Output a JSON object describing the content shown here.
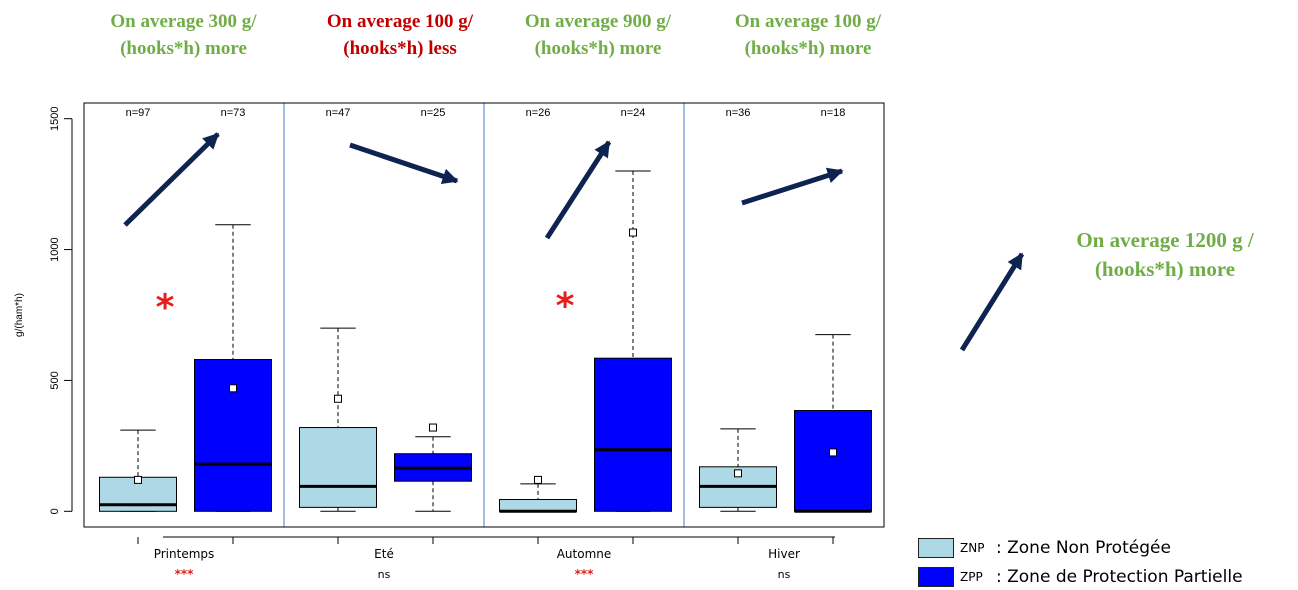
{
  "annotations": [
    {
      "text": "On average 300 g/ (hooks*h) more",
      "color": "#70ad47"
    },
    {
      "text": "On average 100 g/ (hooks*h) less",
      "color": "#c00000"
    },
    {
      "text": "On average 900 g/ (hooks*h) more",
      "color": "#70ad47"
    },
    {
      "text": "On average 100 g/ (hooks*h) more",
      "color": "#70ad47"
    },
    {
      "text": "On average 1200 g / (hooks*h) more",
      "color": "#70ad47"
    }
  ],
  "legend": [
    {
      "code": "ZNP",
      "label": ": Zone Non Protégée",
      "color": "#add8e6"
    },
    {
      "code": "ZPP",
      "label": ": Zone de Protection Partielle",
      "color": "#0000ff"
    }
  ],
  "arrow_color": "#0d2350",
  "chart_data": {
    "type": "boxplot",
    "ylabel": "g/(ham*h)",
    "ylim": [
      -60,
      1560
    ],
    "yticks": [
      0,
      500,
      1000,
      1500
    ],
    "groups": [
      {
        "label": "Printemps",
        "significance": "***",
        "significant": true,
        "trend": "up",
        "boxes": [
          {
            "zone": "ZNP",
            "n_label": "n=97",
            "whisker_low": 0,
            "q1": 0,
            "median": 25,
            "q3": 130,
            "whisker_high": 310,
            "mean": 120
          },
          {
            "zone": "ZPP",
            "n_label": "n=73",
            "whisker_low": 0,
            "q1": 0,
            "median": 180,
            "q3": 580,
            "whisker_high": 1095,
            "mean": 470
          }
        ]
      },
      {
        "label": "Eté",
        "significance": "ns",
        "significant": false,
        "trend": "down",
        "boxes": [
          {
            "zone": "ZNP",
            "n_label": "n=47",
            "whisker_low": 0,
            "q1": 15,
            "median": 95,
            "q3": 320,
            "whisker_high": 700,
            "mean": 430
          },
          {
            "zone": "ZPP",
            "n_label": "n=25",
            "whisker_low": 0,
            "q1": 115,
            "median": 165,
            "q3": 220,
            "whisker_high": 285,
            "mean": 320
          }
        ]
      },
      {
        "label": "Automne",
        "significance": "***",
        "significant": true,
        "trend": "up",
        "boxes": [
          {
            "zone": "ZNP",
            "n_label": "n=26",
            "whisker_low": 0,
            "q1": 0,
            "median": 0,
            "q3": 45,
            "whisker_high": 105,
            "mean": 120
          },
          {
            "zone": "ZPP",
            "n_label": "n=24",
            "whisker_low": 0,
            "q1": 0,
            "median": 235,
            "q3": 585,
            "whisker_high": 1300,
            "mean": 1065
          }
        ]
      },
      {
        "label": "Hiver",
        "significance": "ns",
        "significant": false,
        "trend": "up",
        "boxes": [
          {
            "zone": "ZNP",
            "n_label": "n=36",
            "whisker_low": 0,
            "q1": 15,
            "median": 95,
            "q3": 170,
            "whisker_high": 315,
            "mean": 145
          },
          {
            "zone": "ZPP",
            "n_label": "n=18",
            "whisker_low": 0,
            "q1": 0,
            "median": 0,
            "q3": 385,
            "whisker_high": 675,
            "mean": 225
          }
        ]
      }
    ]
  }
}
